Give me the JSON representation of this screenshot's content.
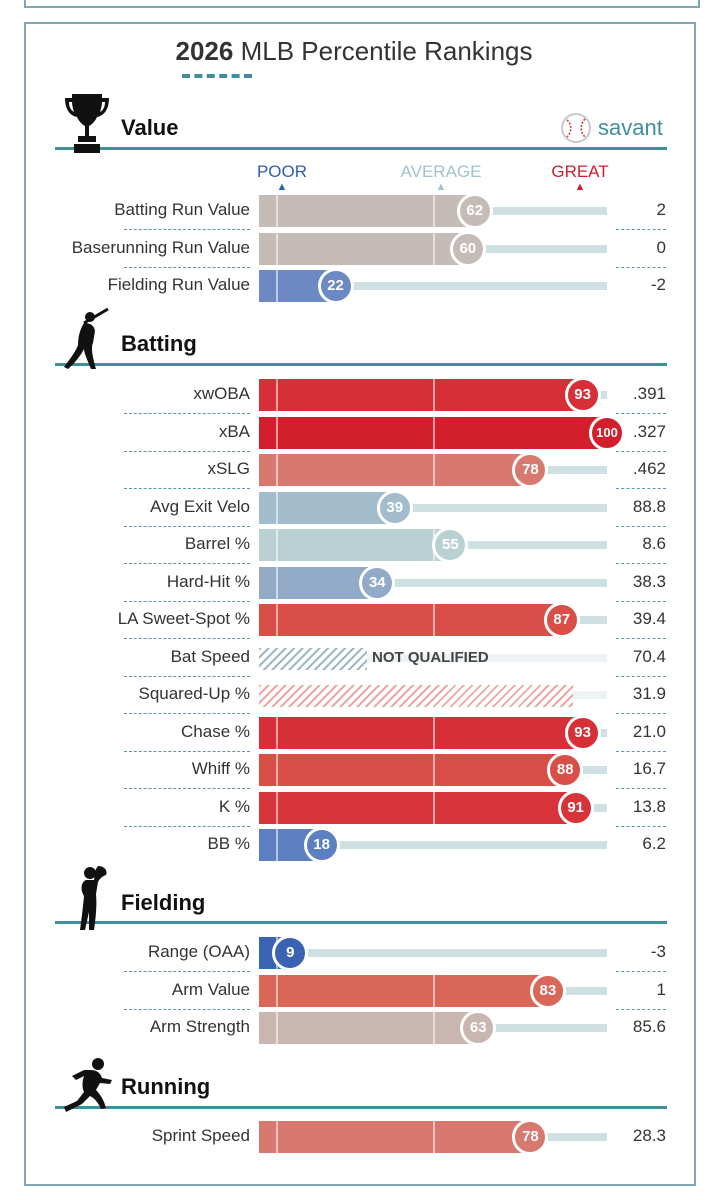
{
  "title": {
    "year": "2026",
    "rest": "MLB Percentile Rankings"
  },
  "brand": {
    "name": "savant",
    "color": "#3f8f9a"
  },
  "scale_headers": {
    "poor": "POOR",
    "average": "AVERAGE",
    "great": "GREAT"
  },
  "colors": {
    "poor": "#2f5fb0",
    "average": "#9fc4cc",
    "great": "#cc1f2a",
    "track": "#cfe0e3"
  },
  "icons": {
    "value": "trophy-icon",
    "batting": "batter-icon",
    "fielding": "fielder-icon",
    "running": "runner-icon",
    "brand": "baseball-icon"
  },
  "sections": [
    {
      "name": "Value",
      "icon": "trophy-icon",
      "rows": [
        {
          "label": "Batting Run Value",
          "percentile": 62,
          "value": "2",
          "color": "#c5bbb7"
        },
        {
          "label": "Baserunning Run Value",
          "percentile": 60,
          "value": "0",
          "color": "#c5bbb7"
        },
        {
          "label": "Fielding Run Value",
          "percentile": 22,
          "value": "-2",
          "color": "#6c89c4"
        }
      ]
    },
    {
      "name": "Batting",
      "icon": "batter-icon",
      "rows": [
        {
          "label": "xwOBA",
          "percentile": 93,
          "value": ".391",
          "color": "#d62f37"
        },
        {
          "label": "xBA",
          "percentile": 100,
          "value": ".327",
          "color": "#d21f2b"
        },
        {
          "label": "xSLG",
          "percentile": 78,
          "value": ".462",
          "color": "#d7796e"
        },
        {
          "label": "Avg Exit Velo",
          "percentile": 39,
          "value": "88.8",
          "color": "#a3bccb"
        },
        {
          "label": "Barrel %",
          "percentile": 55,
          "value": "8.6",
          "color": "#b9d1d3"
        },
        {
          "label": "Hard-Hit %",
          "percentile": 34,
          "value": "38.3",
          "color": "#91aac8"
        },
        {
          "label": "LA Sweet-Spot %",
          "percentile": 87,
          "value": "39.4",
          "color": "#da4e48"
        },
        {
          "label": "Bat Speed",
          "percentile": null,
          "value": "70.4",
          "qualified": false,
          "note": "NOT QUALIFIED",
          "hatch_color": "#9fb8c8"
        },
        {
          "label": "Squared-Up %",
          "percentile": null,
          "value": "31.9",
          "qualified": false,
          "hatch_color": "#e8a8a3"
        },
        {
          "label": "Chase %",
          "percentile": 93,
          "value": "21.0",
          "color": "#d62f37"
        },
        {
          "label": "Whiff %",
          "percentile": 88,
          "value": "16.7",
          "color": "#da4e48"
        },
        {
          "label": "K %",
          "percentile": 91,
          "value": "13.8",
          "color": "#d7343a"
        },
        {
          "label": "BB %",
          "percentile": 18,
          "value": "6.2",
          "color": "#5b7fc1"
        }
      ]
    },
    {
      "name": "Fielding",
      "icon": "fielder-icon",
      "rows": [
        {
          "label": "Range (OAA)",
          "percentile": 9,
          "value": "-3",
          "color": "#3b63b4"
        },
        {
          "label": "Arm Value",
          "percentile": 83,
          "value": "1",
          "color": "#da6657"
        },
        {
          "label": "Arm Strength",
          "percentile": 63,
          "value": "85.6",
          "color": "#c9b6b1"
        }
      ]
    },
    {
      "name": "Running",
      "icon": "runner-icon",
      "rows": [
        {
          "label": "Sprint Speed",
          "percentile": 78,
          "value": "28.3",
          "color": "#d7796e"
        }
      ]
    }
  ]
}
